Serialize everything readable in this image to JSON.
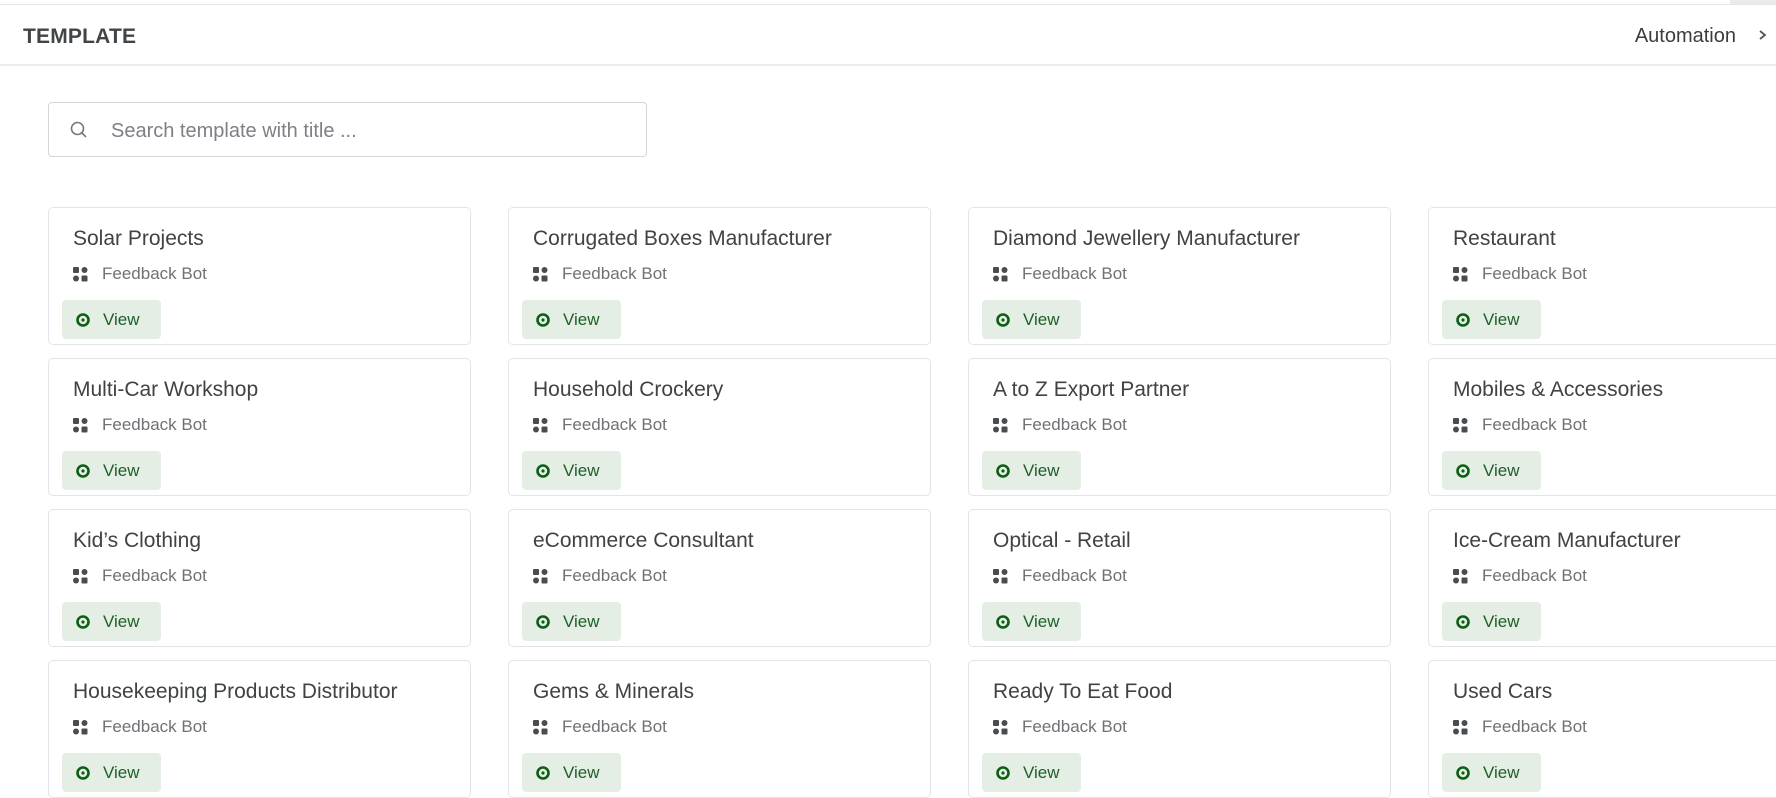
{
  "header": {
    "title": "TEMPLATE",
    "breadcrumb": "Automation"
  },
  "search": {
    "placeholder": "Search template with title ...",
    "value": ""
  },
  "colors": {
    "view_bg": "#e4eee5",
    "view_text": "#1d5f26",
    "eye_icon": "#0b5e12"
  },
  "cards": [
    {
      "title": "Solar Projects",
      "type": "Feedback Bot",
      "action": "View"
    },
    {
      "title": "Corrugated Boxes Manufacturer",
      "type": "Feedback Bot",
      "action": "View"
    },
    {
      "title": "Diamond Jewellery Manufacturer",
      "type": "Feedback Bot",
      "action": "View"
    },
    {
      "title": "Restaurant",
      "type": "Feedback Bot",
      "action": "View"
    },
    {
      "title": "Multi-Car Workshop",
      "type": "Feedback Bot",
      "action": "View"
    },
    {
      "title": "Household Crockery",
      "type": "Feedback Bot",
      "action": "View"
    },
    {
      "title": "A to Z Export Partner",
      "type": "Feedback Bot",
      "action": "View"
    },
    {
      "title": "Mobiles & Accessories",
      "type": "Feedback Bot",
      "action": "View"
    },
    {
      "title": "Kid’s Clothing",
      "type": "Feedback Bot",
      "action": "View"
    },
    {
      "title": "eCommerce Consultant",
      "type": "Feedback Bot",
      "action": "View"
    },
    {
      "title": "Optical - Retail",
      "type": "Feedback Bot",
      "action": "View"
    },
    {
      "title": "Ice-Cream Manufacturer",
      "type": "Feedback Bot",
      "action": "View"
    },
    {
      "title": "Housekeeping Products Distributor",
      "type": "Feedback Bot",
      "action": "View"
    },
    {
      "title": "Gems & Minerals",
      "type": "Feedback Bot",
      "action": "View"
    },
    {
      "title": "Ready To Eat Food",
      "type": "Feedback Bot",
      "action": "View"
    },
    {
      "title": "Used Cars",
      "type": "Feedback Bot",
      "action": "View"
    }
  ]
}
